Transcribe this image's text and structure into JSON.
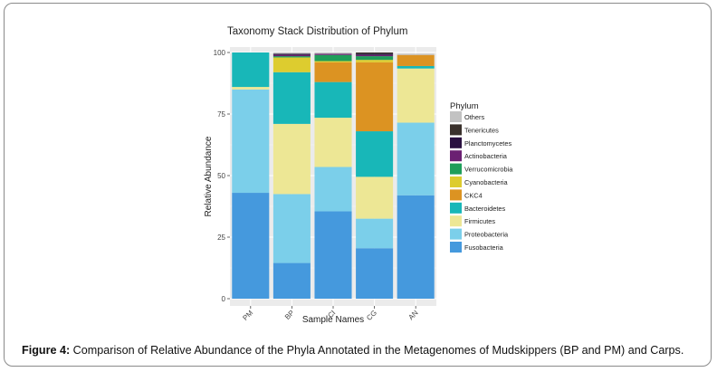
{
  "caption": {
    "label": "Figure 4:",
    "text": " Comparison of Relative Abundance of the Phyla Annotated in the Metagenomes of Mudskippers (BP and PM) and Carps."
  },
  "chart_data": {
    "type": "bar",
    "stacked": true,
    "title": "Taxonomy Stack Distribution of Phylum",
    "xlabel": "Sample Names",
    "ylabel": "Relative Abundance",
    "ylim": [
      0,
      100
    ],
    "yticks": [
      0,
      25,
      50,
      75,
      100
    ],
    "grid": true,
    "legend_title": "Phylum",
    "legend_position": "right",
    "categories": [
      "PM",
      "BP",
      "CI",
      "CG",
      "AN"
    ],
    "series": [
      {
        "name": "Fusobacteria",
        "color": "#4599dd",
        "values": [
          43,
          14.5,
          35.5,
          20.5,
          42
        ]
      },
      {
        "name": "Proteobacteria",
        "color": "#7bcfea",
        "values": [
          42,
          28,
          18,
          12,
          29.5
        ]
      },
      {
        "name": "Firmicutes",
        "color": "#ede795",
        "values": [
          1,
          28.5,
          20,
          17,
          22
        ]
      },
      {
        "name": "Bacteroidetes",
        "color": "#18b7b8",
        "values": [
          14,
          21,
          14.5,
          18.5,
          1
        ]
      },
      {
        "name": "CKC4",
        "color": "#dc9322",
        "values": [
          0,
          0,
          8,
          28,
          4.5
        ]
      },
      {
        "name": "Cyanobacteria",
        "color": "#ddcc2f",
        "values": [
          0,
          6,
          0.5,
          1,
          0
        ]
      },
      {
        "name": "Verrucomicrobia",
        "color": "#1f9e5a",
        "values": [
          0,
          0.5,
          2.5,
          1.5,
          0
        ]
      },
      {
        "name": "Actinobacteria",
        "color": "#6b2072",
        "values": [
          0,
          0.5,
          0.5,
          0.5,
          0
        ]
      },
      {
        "name": "Planctomycetes",
        "color": "#2a1040",
        "values": [
          0,
          0.5,
          0,
          0.5,
          0
        ]
      },
      {
        "name": "Tenericutes",
        "color": "#3a312c",
        "values": [
          0,
          0,
          0,
          0.5,
          0
        ]
      },
      {
        "name": "Others",
        "color": "#c2c2c2",
        "values": [
          0,
          0.5,
          0.5,
          0,
          0.5
        ]
      }
    ]
  }
}
